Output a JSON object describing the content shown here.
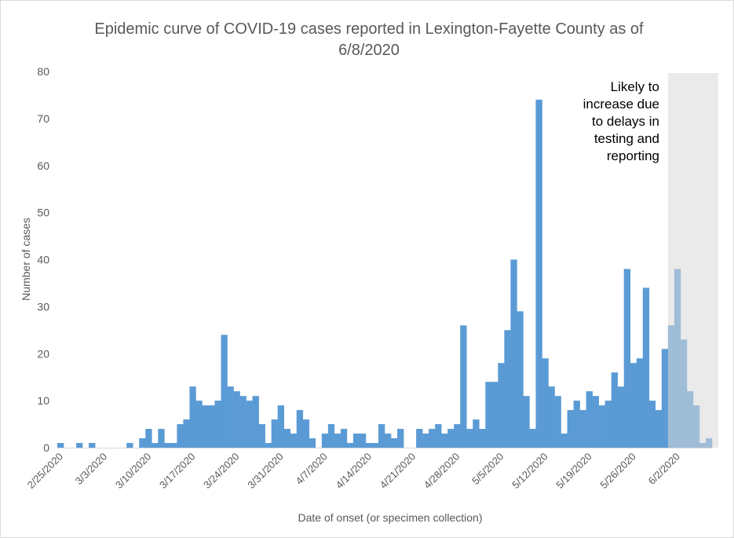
{
  "colors": {
    "bar": "#5b9bd5",
    "shade": "#d9d9d9",
    "text": "#595959",
    "axis": "#d9d9d9"
  },
  "chart_data": {
    "type": "bar",
    "title": "Epidemic curve of COVID-19 cases reported in Lexington-Fayette County as of 6/8/2020",
    "xlabel": "Date of onset (or specimen collection)",
    "ylabel": "Number of cases",
    "ylim": [
      0,
      80
    ],
    "yticks": [
      0,
      10,
      20,
      30,
      40,
      50,
      60,
      70,
      80
    ],
    "x_tick_labels": [
      "2/25/2020",
      "3/3/2020",
      "3/10/2020",
      "3/17/2020",
      "3/24/2020",
      "3/31/2020",
      "4/7/2020",
      "4/14/2020",
      "4/21/2020",
      "4/28/2020",
      "5/5/2020",
      "5/12/2020",
      "5/19/2020",
      "5/26/2020",
      "6/2/2020"
    ],
    "start_date": "2/25/2020",
    "end_date": "6/8/2020",
    "values": [
      1,
      0,
      0,
      1,
      0,
      1,
      0,
      0,
      0,
      0,
      0,
      1,
      0,
      2,
      4,
      1,
      4,
      1,
      1,
      5,
      6,
      13,
      10,
      9,
      9,
      10,
      24,
      13,
      12,
      11,
      10,
      11,
      5,
      1,
      6,
      9,
      4,
      3,
      8,
      6,
      2,
      0,
      3,
      5,
      3,
      4,
      1,
      3,
      3,
      1,
      1,
      5,
      3,
      2,
      4,
      0,
      0,
      4,
      3,
      4,
      5,
      3,
      4,
      5,
      26,
      4,
      6,
      4,
      14,
      14,
      18,
      25,
      40,
      29,
      11,
      4,
      74,
      19,
      13,
      11,
      3,
      8,
      10,
      8,
      12,
      11,
      9,
      10,
      16,
      13,
      38,
      18,
      19,
      34,
      10,
      8,
      21,
      26,
      38,
      23,
      12,
      9,
      1,
      2
    ],
    "shaded_region": {
      "from": "6/1/2020",
      "to": "6/8/2020",
      "label": "Likely to increase due to delays in testing and reporting",
      "label_lines": [
        "Likely to",
        "increase due",
        "to delays in",
        "testing and",
        "reporting"
      ]
    },
    "grid": false,
    "legend": "none"
  }
}
